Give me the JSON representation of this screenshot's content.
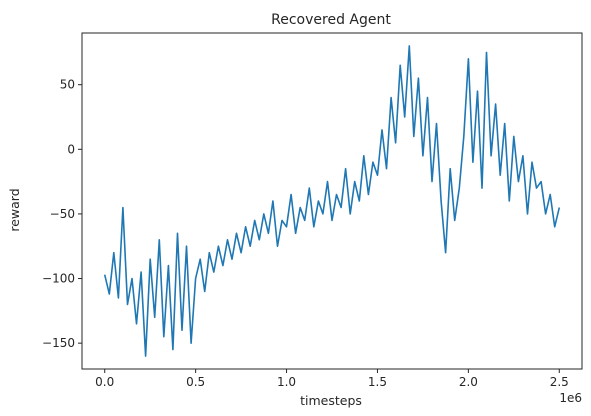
{
  "chart_data": {
    "type": "line",
    "title": "Recovered Agent",
    "xlabel": "timesteps",
    "ylabel": "reward",
    "x_offset_label": "1e6",
    "xlim": [
      -0.125,
      2.625
    ],
    "ylim": [
      -170,
      90
    ],
    "xticks": [
      0.0,
      0.5,
      1.0,
      1.5,
      2.0,
      2.5
    ],
    "xtick_labels": [
      "0.0",
      "0.5",
      "1.0",
      "1.5",
      "2.0",
      "2.5"
    ],
    "yticks": [
      -150,
      -100,
      -50,
      0,
      50
    ],
    "ytick_labels": [
      "−150",
      "−100",
      "−50",
      "0",
      "50"
    ],
    "grid": false,
    "colors": {
      "series": "#1f77b4",
      "axes": "#262626"
    },
    "series": [
      {
        "x": [
          0.0,
          0.025,
          0.05,
          0.075,
          0.1,
          0.125,
          0.15,
          0.175,
          0.2,
          0.225,
          0.25,
          0.275,
          0.3,
          0.325,
          0.35,
          0.375,
          0.4,
          0.425,
          0.45,
          0.475,
          0.5,
          0.525,
          0.55,
          0.575,
          0.6,
          0.625,
          0.65,
          0.675,
          0.7,
          0.725,
          0.75,
          0.775,
          0.8,
          0.825,
          0.85,
          0.875,
          0.9,
          0.925,
          0.95,
          0.975,
          1.0,
          1.025,
          1.05,
          1.075,
          1.1,
          1.125,
          1.15,
          1.175,
          1.2,
          1.225,
          1.25,
          1.275,
          1.3,
          1.325,
          1.35,
          1.375,
          1.4,
          1.425,
          1.45,
          1.475,
          1.5,
          1.525,
          1.55,
          1.575,
          1.6,
          1.625,
          1.65,
          1.675,
          1.7,
          1.725,
          1.75,
          1.775,
          1.8,
          1.825,
          1.85,
          1.875,
          1.9,
          1.925,
          1.95,
          1.975,
          2.0,
          2.025,
          2.05,
          2.075,
          2.1,
          2.125,
          2.15,
          2.175,
          2.2,
          2.225,
          2.25,
          2.275,
          2.3,
          2.325,
          2.35,
          2.375,
          2.4,
          2.425,
          2.45,
          2.475,
          2.5
        ],
        "y": [
          -97,
          -112,
          -80,
          -115,
          -45,
          -120,
          -100,
          -135,
          -95,
          -160,
          -85,
          -130,
          -70,
          -145,
          -90,
          -155,
          -65,
          -140,
          -75,
          -150,
          -100,
          -85,
          -110,
          -80,
          -95,
          -75,
          -90,
          -70,
          -85,
          -65,
          -80,
          -60,
          -75,
          -55,
          -70,
          -50,
          -65,
          -40,
          -75,
          -55,
          -60,
          -35,
          -65,
          -45,
          -55,
          -30,
          -60,
          -40,
          -50,
          -25,
          -55,
          -35,
          -45,
          -15,
          -50,
          -25,
          -40,
          -5,
          -35,
          -10,
          -20,
          15,
          -15,
          40,
          5,
          65,
          25,
          80,
          10,
          55,
          -5,
          40,
          -25,
          20,
          -40,
          -80,
          -15,
          -55,
          -30,
          10,
          70,
          -10,
          45,
          -30,
          75,
          -5,
          35,
          -20,
          20,
          -40,
          10,
          -25,
          -5,
          -50,
          -10,
          -30,
          -25,
          -50,
          -35,
          -60,
          -45
        ]
      }
    ]
  }
}
